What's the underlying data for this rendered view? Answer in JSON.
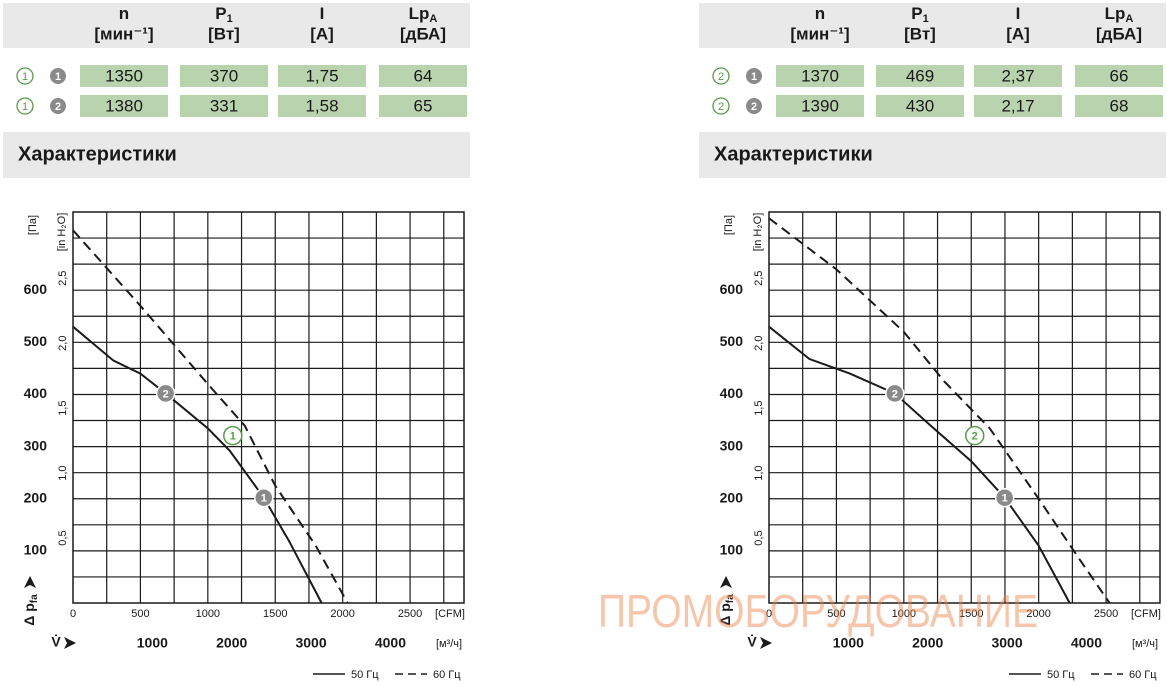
{
  "panels": [
    {
      "table": {
        "headers": [
          {
            "symbol": "n",
            "unit": "[мин⁻¹]"
          },
          {
            "symbol": "P",
            "sub": "1",
            "unit": "[Вт]"
          },
          {
            "symbol": "I",
            "unit": "[А]"
          },
          {
            "symbol": "Lp",
            "sub": "A",
            "unit": "[дБА]"
          }
        ],
        "rows": [
          {
            "marker": "1",
            "point": "1",
            "cells": [
              "1350",
              "370",
              "1,75",
              "64"
            ]
          },
          {
            "marker": "1",
            "point": "2",
            "cells": [
              "1380",
              "331",
              "1,58",
              "65"
            ]
          }
        ]
      },
      "section_title": "Характеристики"
    },
    {
      "table": {
        "headers": [
          {
            "symbol": "n",
            "unit": "[мин⁻¹]"
          },
          {
            "symbol": "P",
            "sub": "1",
            "unit": "[Вт]"
          },
          {
            "symbol": "I",
            "unit": "[А]"
          },
          {
            "symbol": "Lp",
            "sub": "A",
            "unit": "[дБА]"
          }
        ],
        "rows": [
          {
            "marker": "2",
            "point": "1",
            "cells": [
              "1370",
              "469",
              "2,37",
              "66"
            ]
          },
          {
            "marker": "2",
            "point": "2",
            "cells": [
              "1390",
              "430",
              "2,17",
              "68"
            ]
          }
        ]
      },
      "section_title": "Характеристики"
    }
  ],
  "chart_data": [
    {
      "type": "line",
      "x_label": "[CFM]",
      "x2_label": "V̇",
      "x2_unit": "[м³/ч]",
      "y_unit": "[Па]",
      "y2_unit": "[in H₂O]",
      "y_label": "Δ p",
      "y_label_sub": "fa",
      "xlim": [
        0,
        2900
      ],
      "xticks": [
        0,
        500,
        1000,
        1500,
        2000,
        2500
      ],
      "x2lim": [
        0,
        4927
      ],
      "x2ticks": [
        1000,
        2000,
        3000,
        4000
      ],
      "ylim": [
        0,
        750
      ],
      "yticks": [
        100,
        200,
        300,
        400,
        500,
        600
      ],
      "y2lim": [
        0,
        3.01
      ],
      "y2ticks": [
        {
          "value": 0.5,
          "label": "0,5"
        },
        {
          "value": 1.0,
          "label": "1,0"
        },
        {
          "value": 1.5,
          "label": "1,5"
        },
        {
          "value": 2.0,
          "label": "2,0"
        },
        {
          "value": 2.5,
          "label": "2,5"
        }
      ],
      "xgrid": [
        250,
        500,
        750,
        1000,
        1250,
        1500,
        1750,
        2000,
        2250,
        2500,
        2750
      ],
      "ygrid": [
        50,
        100,
        150,
        200,
        250,
        300,
        350,
        400,
        450,
        500,
        550,
        600,
        650,
        700
      ],
      "series": [
        {
          "name": "50 Гц",
          "color": "#1a1a1a",
          "dashed": false,
          "x": [
            0,
            300,
            500,
            687,
            1000,
            1163,
            1415,
            1600,
            1844
          ],
          "values": [
            530,
            465,
            440,
            402,
            335,
            292,
            202,
            120,
            0
          ]
        },
        {
          "name": "60 Гц",
          "color": "#1a1a1a",
          "dashed": true,
          "x": [
            0,
            500,
            1000,
            1274,
            1500,
            1800,
            2037
          ],
          "values": [
            715,
            570,
            420,
            340,
            225,
            110,
            0
          ]
        }
      ],
      "points": [
        {
          "label": "2",
          "x": 687,
          "y": 402,
          "style": "gray"
        },
        {
          "label": "1",
          "x": 1415,
          "y": 202,
          "style": "gray"
        },
        {
          "label": "1",
          "x": 1185,
          "y": 321,
          "style": "green"
        }
      ]
    },
    {
      "type": "line",
      "x_label": "[CFM]",
      "x2_label": "V̇",
      "x2_unit": "[м³/ч]",
      "y_unit": "[Па]",
      "y2_unit": "[in H₂O]",
      "y_label": "Δ p",
      "y_label_sub": "fa",
      "xlim": [
        0,
        2900
      ],
      "xticks": [
        0,
        500,
        1000,
        1500,
        2000,
        2500
      ],
      "x2lim": [
        0,
        4927
      ],
      "x2ticks": [
        1000,
        2000,
        3000,
        4000
      ],
      "ylim": [
        0,
        750
      ],
      "yticks": [
        100,
        200,
        300,
        400,
        500,
        600
      ],
      "y2lim": [
        0,
        3.01
      ],
      "y2ticks": [
        {
          "value": 0.5,
          "label": "0,5"
        },
        {
          "value": 1.0,
          "label": "1,0"
        },
        {
          "value": 1.5,
          "label": "1,5"
        },
        {
          "value": 2.0,
          "label": "2,0"
        },
        {
          "value": 2.5,
          "label": "2,5"
        }
      ],
      "xgrid": [
        250,
        500,
        750,
        1000,
        1250,
        1500,
        1750,
        2000,
        2250,
        2500,
        2750
      ],
      "ygrid": [
        50,
        100,
        150,
        200,
        250,
        300,
        350,
        400,
        450,
        500,
        550,
        600,
        650,
        700
      ],
      "series": [
        {
          "name": "50 Гц",
          "color": "#1a1a1a",
          "dashed": false,
          "x": [
            0,
            300,
            600,
            933,
            1200,
            1500,
            1748,
            2000,
            2230
          ],
          "values": [
            530,
            468,
            440,
            402,
            340,
            272,
            202,
            110,
            0
          ]
        },
        {
          "name": "60 Гц",
          "color": "#1a1a1a",
          "dashed": true,
          "x": [
            0,
            500,
            1000,
            1300,
            1637,
            2000,
            2300,
            2526
          ],
          "values": [
            738,
            640,
            520,
            425,
            335,
            200,
            85,
            0
          ]
        }
      ],
      "points": [
        {
          "label": "2",
          "x": 933,
          "y": 402,
          "style": "gray"
        },
        {
          "label": "1",
          "x": 1748,
          "y": 202,
          "style": "gray"
        },
        {
          "label": "2",
          "x": 1526,
          "y": 321,
          "style": "green"
        }
      ]
    }
  ],
  "watermark": "ПРОМОБОРУДОВАНИЕ"
}
